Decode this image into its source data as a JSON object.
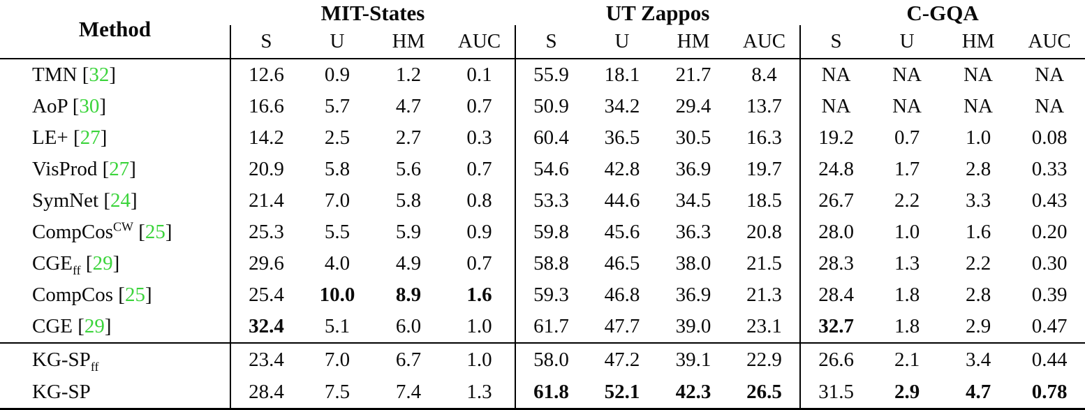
{
  "table": {
    "method_header": "Method",
    "citation_color": "#3bd43b",
    "metrics": [
      "S",
      "U",
      "HM",
      "AUC"
    ],
    "groups": [
      {
        "name": "MIT-States",
        "cols": [
          "S",
          "U",
          "HM",
          "AUC"
        ]
      },
      {
        "name": "UT Zappos",
        "cols": [
          "S",
          "U",
          "HM",
          "AUC"
        ]
      },
      {
        "name": "C-GQA",
        "cols": [
          "S",
          "U",
          "HM",
          "AUC"
        ]
      }
    ],
    "baseline_rows": [
      {
        "method": "TMN",
        "cite": "32",
        "values": [
          "12.6",
          "0.9",
          "1.2",
          "0.1",
          "55.9",
          "18.1",
          "21.7",
          "8.4",
          "NA",
          "NA",
          "NA",
          "NA"
        ],
        "bold": []
      },
      {
        "method": "AoP",
        "cite": "30",
        "values": [
          "16.6",
          "5.7",
          "4.7",
          "0.7",
          "50.9",
          "34.2",
          "29.4",
          "13.7",
          "NA",
          "NA",
          "NA",
          "NA"
        ],
        "bold": []
      },
      {
        "method": "LE+",
        "cite": "27",
        "values": [
          "14.2",
          "2.5",
          "2.7",
          "0.3",
          "60.4",
          "36.5",
          "30.5",
          "16.3",
          "19.2",
          "0.7",
          "1.0",
          "0.08"
        ],
        "bold": []
      },
      {
        "method": "VisProd",
        "cite": "27",
        "values": [
          "20.9",
          "5.8",
          "5.6",
          "0.7",
          "54.6",
          "42.8",
          "36.9",
          "19.7",
          "24.8",
          "1.7",
          "2.8",
          "0.33"
        ],
        "bold": []
      },
      {
        "method": "SymNet",
        "cite": "24",
        "values": [
          "21.4",
          "7.0",
          "5.8",
          "0.8",
          "53.3",
          "44.6",
          "34.5",
          "18.5",
          "26.7",
          "2.2",
          "3.3",
          "0.43"
        ],
        "bold": []
      },
      {
        "method": "CompCos",
        "sup": "CW",
        "cite": "25",
        "values": [
          "25.3",
          "5.5",
          "5.9",
          "0.9",
          "59.8",
          "45.6",
          "36.3",
          "20.8",
          "28.0",
          "1.0",
          "1.6",
          "0.20"
        ],
        "bold": []
      },
      {
        "method": "CGE",
        "sub": "ff",
        "cite": "29",
        "values": [
          "29.6",
          "4.0",
          "4.9",
          "0.7",
          "58.8",
          "46.5",
          "38.0",
          "21.5",
          "28.3",
          "1.3",
          "2.2",
          "0.30"
        ],
        "bold": []
      },
      {
        "method": "CompCos",
        "cite": "25",
        "values": [
          "25.4",
          "10.0",
          "8.9",
          "1.6",
          "59.3",
          "46.8",
          "36.9",
          "21.3",
          "28.4",
          "1.8",
          "2.8",
          "0.39"
        ],
        "bold": [
          1,
          2,
          3
        ]
      },
      {
        "method": "CGE",
        "cite": "29",
        "values": [
          "32.4",
          "5.1",
          "6.0",
          "1.0",
          "61.7",
          "47.7",
          "39.0",
          "23.1",
          "32.7",
          "1.8",
          "2.9",
          "0.47"
        ],
        "bold": [
          0,
          8
        ]
      }
    ],
    "our_rows": [
      {
        "method": "KG-SP",
        "sub": "ff",
        "values": [
          "23.4",
          "7.0",
          "6.7",
          "1.0",
          "58.0",
          "47.2",
          "39.1",
          "22.9",
          "26.6",
          "2.1",
          "3.4",
          "0.44"
        ],
        "bold": []
      },
      {
        "method": "KG-SP",
        "values": [
          "28.4",
          "7.5",
          "7.4",
          "1.3",
          "61.8",
          "52.1",
          "42.3",
          "26.5",
          "31.5",
          "2.9",
          "4.7",
          "0.78"
        ],
        "bold": [
          4,
          5,
          6,
          7,
          9,
          10,
          11
        ]
      }
    ]
  }
}
